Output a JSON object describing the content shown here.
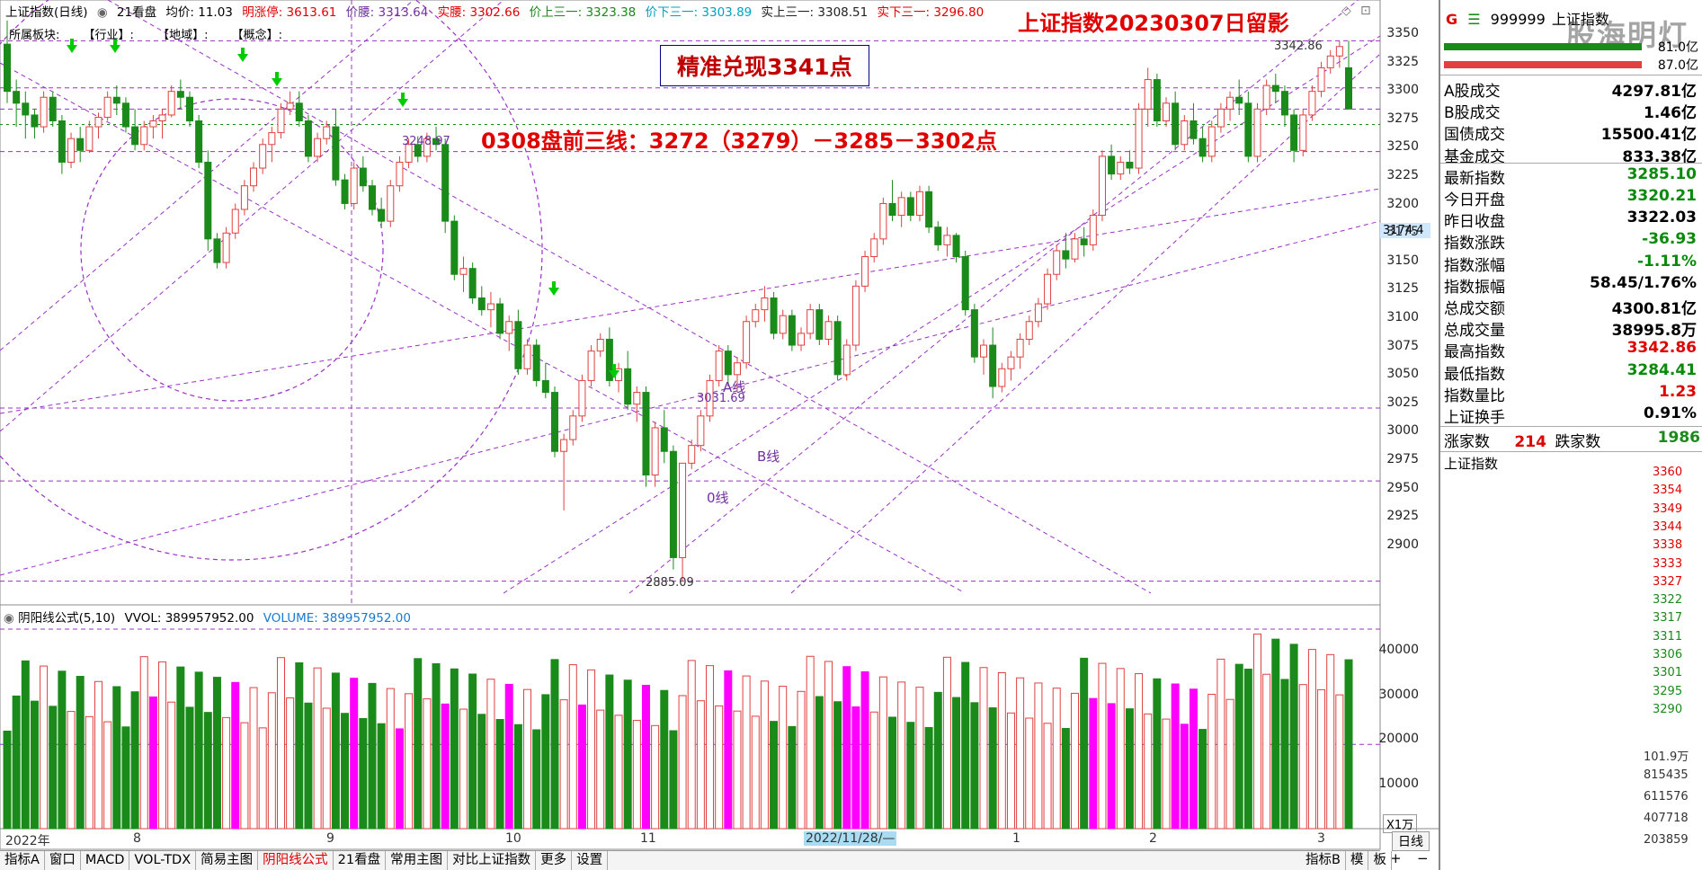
{
  "header": {
    "title": "上证指数(日线)",
    "period": "21看盘",
    "avg_price": "均价: 11.03",
    "limit_up": "明涨停: 3613.61",
    "price_waist": "价腰: 3313.64",
    "solid_waist": "实腰: 3302.66",
    "price_up3": "价上三一: 3323.38",
    "price_down3": "价下三一: 3303.89",
    "solid_up3": "实上三一: 3308.51",
    "solid_down3": "实下三一: 3296.80",
    "headline": "上证指数20230307日留影"
  },
  "menu": {
    "board": "所属板块:",
    "industry": "【行业】:",
    "region": "【地域】:",
    "concept": "【概念】:"
  },
  "annotations": {
    "target_box": "精准兑现3341点",
    "lines": "0308盘前三线：3272（3279）－3285－3302点",
    "high_label": "3342.86",
    "low_label": "2885.09",
    "mid_label1": "3248.97",
    "mid_label2": "3031.69",
    "a_line": "A线",
    "b_line": "B线",
    "zero_line": "0线",
    "cursor_price": "3174.4"
  },
  "price_axis": {
    "ticks": [
      "3350",
      "3325",
      "3300",
      "3275",
      "3250",
      "3225",
      "3200",
      "3175",
      "3150",
      "3125",
      "3100",
      "3075",
      "3050",
      "3025",
      "3000",
      "2975",
      "2950",
      "2925",
      "2900"
    ]
  },
  "volume_panel": {
    "title": "阴阳线公式(5,10)",
    "vvol": "VVOL: 389957952.00",
    "volume": "VOLUME: 389957952.00",
    "ticks": [
      "40000",
      "30000",
      "20000",
      "10000"
    ],
    "unit": "X1万"
  },
  "x_axis": {
    "labels": [
      "2022年",
      "8",
      "9",
      "10",
      "11",
      "2022/11/28/—",
      "1",
      "2",
      "3"
    ],
    "period_button": "日线",
    "zoom_in": "+",
    "zoom_out": "−"
  },
  "tabs": [
    "指标A",
    "窗口",
    "MACD",
    "VOL-TDX",
    "简易主图",
    "阴阳线公式",
    "21看盘",
    "常用主图",
    "对比上证指数",
    "更多",
    "设置"
  ],
  "tabs_right": [
    "指标B",
    "模",
    "板"
  ],
  "right_panel": {
    "code": "999999",
    "name": "上证指数",
    "watermark": "股海明灯",
    "bar_vals": [
      "81.0亿",
      "87.0亿"
    ],
    "rows": [
      {
        "label": "A股成交",
        "value": "4297.81亿",
        "color": "black"
      },
      {
        "label": "B股成交",
        "value": "1.46亿",
        "color": "black"
      },
      {
        "label": "国债成交",
        "value": "15500.41亿",
        "color": "black"
      },
      {
        "label": "基金成交",
        "value": "833.38亿",
        "color": "black"
      },
      {
        "label": "最新指数",
        "value": "3285.10",
        "color": "green"
      },
      {
        "label": "今日开盘",
        "value": "3320.21",
        "color": "green"
      },
      {
        "label": "昨日收盘",
        "value": "3322.03",
        "color": "black"
      },
      {
        "label": "指数涨跌",
        "value": "-36.93",
        "color": "green"
      },
      {
        "label": "指数涨幅",
        "value": "-1.11%",
        "color": "green"
      },
      {
        "label": "指数振幅",
        "value": "58.45/1.76%",
        "color": "black"
      },
      {
        "label": "总成交额",
        "value": "4300.81亿",
        "color": "black"
      },
      {
        "label": "总成交量",
        "value": "38995.8万",
        "color": "black"
      },
      {
        "label": "最高指数",
        "value": "3342.86",
        "color": "red"
      },
      {
        "label": "最低指数",
        "value": "3284.41",
        "color": "green"
      },
      {
        "label": "指数量比",
        "value": "1.23",
        "color": "red"
      },
      {
        "label": "上证换手",
        "value": "0.91%",
        "color": "black"
      }
    ],
    "up_label": "涨家数",
    "up_count": "214",
    "down_label": "跌家数",
    "down_count": "1986",
    "intraday_title": "上证指数",
    "intraday_ticks": [
      "3360",
      "3354",
      "3349",
      "3344",
      "3338",
      "3333",
      "3327",
      "3322",
      "3317",
      "3311",
      "3306",
      "3301",
      "3295",
      "3290"
    ],
    "vol_ticks": [
      "101.9万",
      "815435",
      "611576",
      "407718",
      "203859"
    ]
  },
  "colors": {
    "up": "#e04040",
    "down": "#1a8a1a",
    "magenta": "#ff00ff",
    "dash": "#9b30c8",
    "headline": "#e00000"
  }
}
